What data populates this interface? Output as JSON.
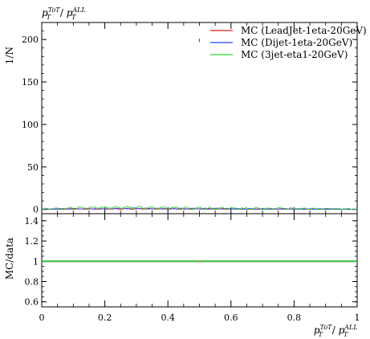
{
  "chart_data": [
    {
      "type": "line",
      "panel": "main",
      "title": "p_T^ToT / p_T^ALL",
      "ylabel": "1/N",
      "xlim": [
        0,
        1
      ],
      "ylim": [
        -5,
        220
      ],
      "yticks": [
        0,
        50,
        100,
        150,
        200
      ],
      "ytick_labels": [
        "0",
        "50",
        "100",
        "150",
        "200"
      ],
      "legend": {
        "placement": "top-right"
      },
      "grid": false,
      "series": [
        {
          "name": "MC (LeadJet-1eta-20GeV)",
          "color": "#e41a1c",
          "x": [
            0.0,
            0.1,
            0.2,
            0.3,
            0.4,
            0.5,
            0.6,
            0.7,
            0.8,
            0.9,
            1.0
          ],
          "y": [
            0,
            0.4,
            0.6,
            0.7,
            0.6,
            199,
            0.4,
            0.3,
            0.3,
            0.2,
            0
          ],
          "note_visible": "sharp spike near x=0.5 reaching ~200"
        },
        {
          "name": "MC (Dijet-1eta-20GeV)",
          "color": "#1f3fff",
          "x": [
            0.0,
            0.1,
            0.2,
            0.3,
            0.4,
            0.5,
            0.6,
            0.7,
            0.8,
            0.9,
            1.0
          ],
          "y": [
            0,
            0.8,
            1.0,
            1.2,
            1.0,
            0.9,
            0.8,
            0.6,
            0.5,
            0.3,
            0
          ]
        },
        {
          "name": "MC (3jet-eta1-20GeV)",
          "color": "#33cc33",
          "x": [
            0.0,
            0.1,
            0.2,
            0.3,
            0.4,
            0.5,
            0.6,
            0.7,
            0.8,
            0.9,
            1.0
          ],
          "y": [
            0,
            1.6,
            2.0,
            2.3,
            1.8,
            1.2,
            1.0,
            0.8,
            0.6,
            0.3,
            0
          ]
        }
      ]
    },
    {
      "type": "line",
      "panel": "ratio",
      "ylabel": "MC/data",
      "xlabel": "p_T^ToT / p_T^ALL",
      "xlim": [
        0,
        1
      ],
      "ylim": [
        0.55,
        1.47
      ],
      "yticks": [
        0.6,
        0.8,
        1.0,
        1.2,
        1.4
      ],
      "ytick_labels": [
        "0.6",
        "0.8",
        "1",
        "1.2",
        "1.4"
      ],
      "xticks": [
        0,
        0.2,
        0.4,
        0.6,
        0.8,
        1.0
      ],
      "xtick_labels": [
        "0",
        "0.2",
        "0.4",
        "0.6",
        "0.8",
        "1"
      ],
      "series": [
        {
          "name": "MC (LeadJet-1eta-20GeV)",
          "color": "#e41a1c",
          "x": [
            0.0,
            1.0
          ],
          "y": [
            1.0,
            1.0
          ]
        },
        {
          "name": "MC (Dijet-1eta-20GeV)",
          "color": "#1f3fff",
          "x": [
            0.0,
            1.0
          ],
          "y": [
            1.0,
            1.0
          ]
        },
        {
          "name": "MC (3jet-eta1-20GeV)",
          "color": "#33cc33",
          "x": [
            0.0,
            1.0
          ],
          "y": [
            1.0,
            1.0
          ]
        }
      ]
    }
  ]
}
